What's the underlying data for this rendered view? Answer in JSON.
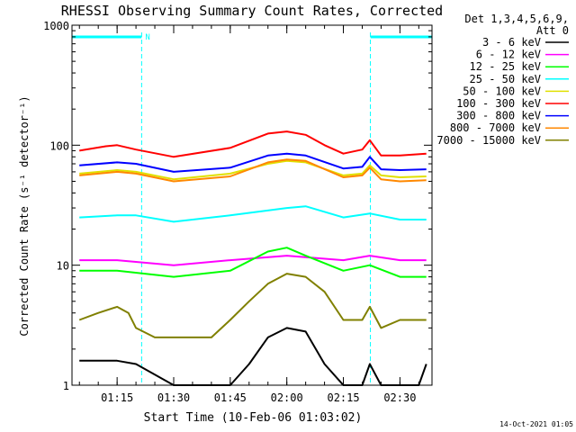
{
  "chart_data": {
    "type": "line",
    "title": "RHESSI Observing Summary Count Rates, Corrected",
    "xlabel": "Start Time (10-Feb-06 01:03:02)",
    "ylabel": "Corrected Count Rate (s⁻¹ detector⁻¹)",
    "yscale": "log",
    "ylim": [
      1,
      1000
    ],
    "xlim": [
      "01:03:02",
      "02:38:30"
    ],
    "x_ticks": [
      "01:15",
      "01:30",
      "01:45",
      "02:00",
      "02:15",
      "02:30"
    ],
    "y_ticks": [
      "1",
      "10",
      "100",
      "1000"
    ],
    "legend_title_1": "Det 1,3,4,5,6,9,",
    "legend_title_2": "Att 0",
    "legend_position": "right",
    "timestamp": "14-Oct-2021 01:05",
    "observing_flags": [
      {
        "label": "N",
        "start": "01:03:02",
        "end": "01:21:30"
      },
      {
        "label": "",
        "start": "02:22:10",
        "end": "02:38:30"
      }
    ],
    "series": [
      {
        "name": "3 - 6 keV",
        "color": "#000000",
        "x": [
          "01:05",
          "01:15",
          "01:20",
          "01:30",
          "01:45",
          "01:50",
          "01:55",
          "02:00",
          "02:05",
          "02:10",
          "02:15",
          "02:20",
          "02:22",
          "02:25",
          "02:30",
          "02:35",
          "02:37"
        ],
        "values": [
          1.6,
          1.6,
          1.5,
          1,
          1,
          1.5,
          2.5,
          3,
          2.8,
          1.5,
          1,
          1,
          1.5,
          1,
          1,
          1,
          1.5
        ]
      },
      {
        "name": "6 - 12 keV",
        "color": "#ff00ff",
        "x": [
          "01:05",
          "01:15",
          "01:30",
          "01:45",
          "02:00",
          "02:15",
          "02:22",
          "02:30",
          "02:37"
        ],
        "values": [
          11,
          11,
          10,
          11,
          12,
          11,
          12,
          11,
          11
        ]
      },
      {
        "name": "12 - 25 keV",
        "color": "#00ff00",
        "x": [
          "01:05",
          "01:15",
          "01:30",
          "01:45",
          "01:55",
          "02:00",
          "02:05",
          "02:15",
          "02:22",
          "02:30",
          "02:37"
        ],
        "values": [
          9,
          9,
          8,
          9,
          13,
          14,
          12,
          9,
          10,
          8,
          8
        ]
      },
      {
        "name": "25 - 50 keV",
        "color": "#00ffff",
        "x": [
          "01:05",
          "01:15",
          "01:20",
          "01:30",
          "01:45",
          "02:00",
          "02:05",
          "02:15",
          "02:22",
          "02:30",
          "02:37"
        ],
        "values": [
          25,
          26,
          26,
          23,
          26,
          30,
          31,
          25,
          27,
          24,
          24
        ]
      },
      {
        "name": "50 - 100 keV",
        "color": "#e0e000",
        "x": [
          "01:05",
          "01:15",
          "01:20",
          "01:30",
          "01:45",
          "01:55",
          "02:00",
          "02:05",
          "02:15",
          "02:20",
          "02:22",
          "02:25",
          "02:30",
          "02:37"
        ],
        "values": [
          58,
          62,
          60,
          52,
          58,
          70,
          74,
          72,
          56,
          58,
          68,
          56,
          54,
          55
        ]
      },
      {
        "name": "100 - 300 keV",
        "color": "#ff0000",
        "x": [
          "01:05",
          "01:12",
          "01:15",
          "01:20",
          "01:30",
          "01:45",
          "01:55",
          "02:00",
          "02:05",
          "02:10",
          "02:15",
          "02:20",
          "02:22",
          "02:25",
          "02:30",
          "02:37"
        ],
        "values": [
          90,
          98,
          100,
          92,
          80,
          95,
          125,
          130,
          122,
          100,
          85,
          92,
          110,
          82,
          82,
          85
        ]
      },
      {
        "name": "300 - 800 keV",
        "color": "#0000ff",
        "x": [
          "01:05",
          "01:15",
          "01:20",
          "01:30",
          "01:45",
          "01:55",
          "02:00",
          "02:05",
          "02:15",
          "02:20",
          "02:22",
          "02:25",
          "02:30",
          "02:37"
        ],
        "values": [
          68,
          72,
          70,
          60,
          65,
          82,
          85,
          82,
          64,
          66,
          80,
          63,
          62,
          63
        ]
      },
      {
        "name": "800 - 7000 keV",
        "color": "#ff8800",
        "x": [
          "01:05",
          "01:15",
          "01:20",
          "01:30",
          "01:45",
          "01:55",
          "02:00",
          "02:05",
          "02:15",
          "02:20",
          "02:22",
          "02:25",
          "02:30",
          "02:37"
        ],
        "values": [
          56,
          60,
          58,
          50,
          55,
          72,
          76,
          74,
          54,
          56,
          65,
          52,
          50,
          51
        ]
      },
      {
        "name": "7000 - 15000 keV",
        "color": "#808000",
        "x": [
          "01:05",
          "01:10",
          "01:15",
          "01:18",
          "01:20",
          "01:25",
          "01:30",
          "01:40",
          "01:45",
          "01:50",
          "01:55",
          "02:00",
          "02:05",
          "02:10",
          "02:15",
          "02:20",
          "02:22",
          "02:25",
          "02:30",
          "02:37"
        ],
        "values": [
          3.5,
          4,
          4.5,
          4,
          3,
          2.5,
          2.5,
          2.5,
          3.5,
          5,
          7,
          8.5,
          8,
          6,
          3.5,
          3.5,
          4.5,
          3,
          3.5,
          3.5
        ]
      }
    ]
  }
}
